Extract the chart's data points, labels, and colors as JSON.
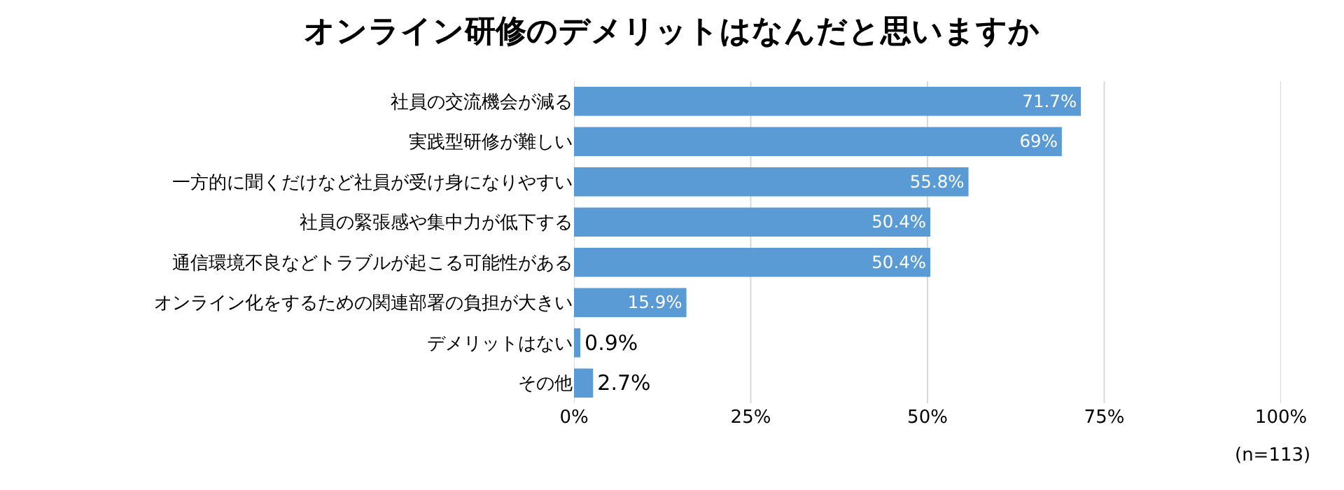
{
  "chart_data": {
    "type": "bar",
    "orientation": "horizontal",
    "title": "オンライン研修のデメリットはなんだと思いますか",
    "categories": [
      "社員の交流機会が減る",
      "実践型研修が難しい",
      "一方的に聞くだけなど社員が受け身になりやすい",
      "社員の緊張感や集中力が低下する",
      "通信環境不良などトラブルが起こる可能性がある",
      "オンライン化をするための関連部署の負担が大きい",
      "デメリットはない",
      "その他"
    ],
    "values": [
      71.7,
      69,
      55.8,
      50.4,
      50.4,
      15.9,
      0.9,
      2.7
    ],
    "value_labels": [
      "71.7%",
      "69%",
      "55.8%",
      "50.4%",
      "50.4%",
      "15.9%",
      "0.9%",
      "2.7%"
    ],
    "color": "#5b9bd5",
    "xlim": [
      0,
      100
    ],
    "xticks": [
      {
        "value": 0,
        "label": "0%"
      },
      {
        "value": 25,
        "label": "25%"
      },
      {
        "value": 50,
        "label": "50%"
      },
      {
        "value": 75,
        "label": "75%"
      },
      {
        "value": 100,
        "label": "100%"
      }
    ],
    "grid": "x",
    "annotations": [
      "(n=113)"
    ]
  }
}
